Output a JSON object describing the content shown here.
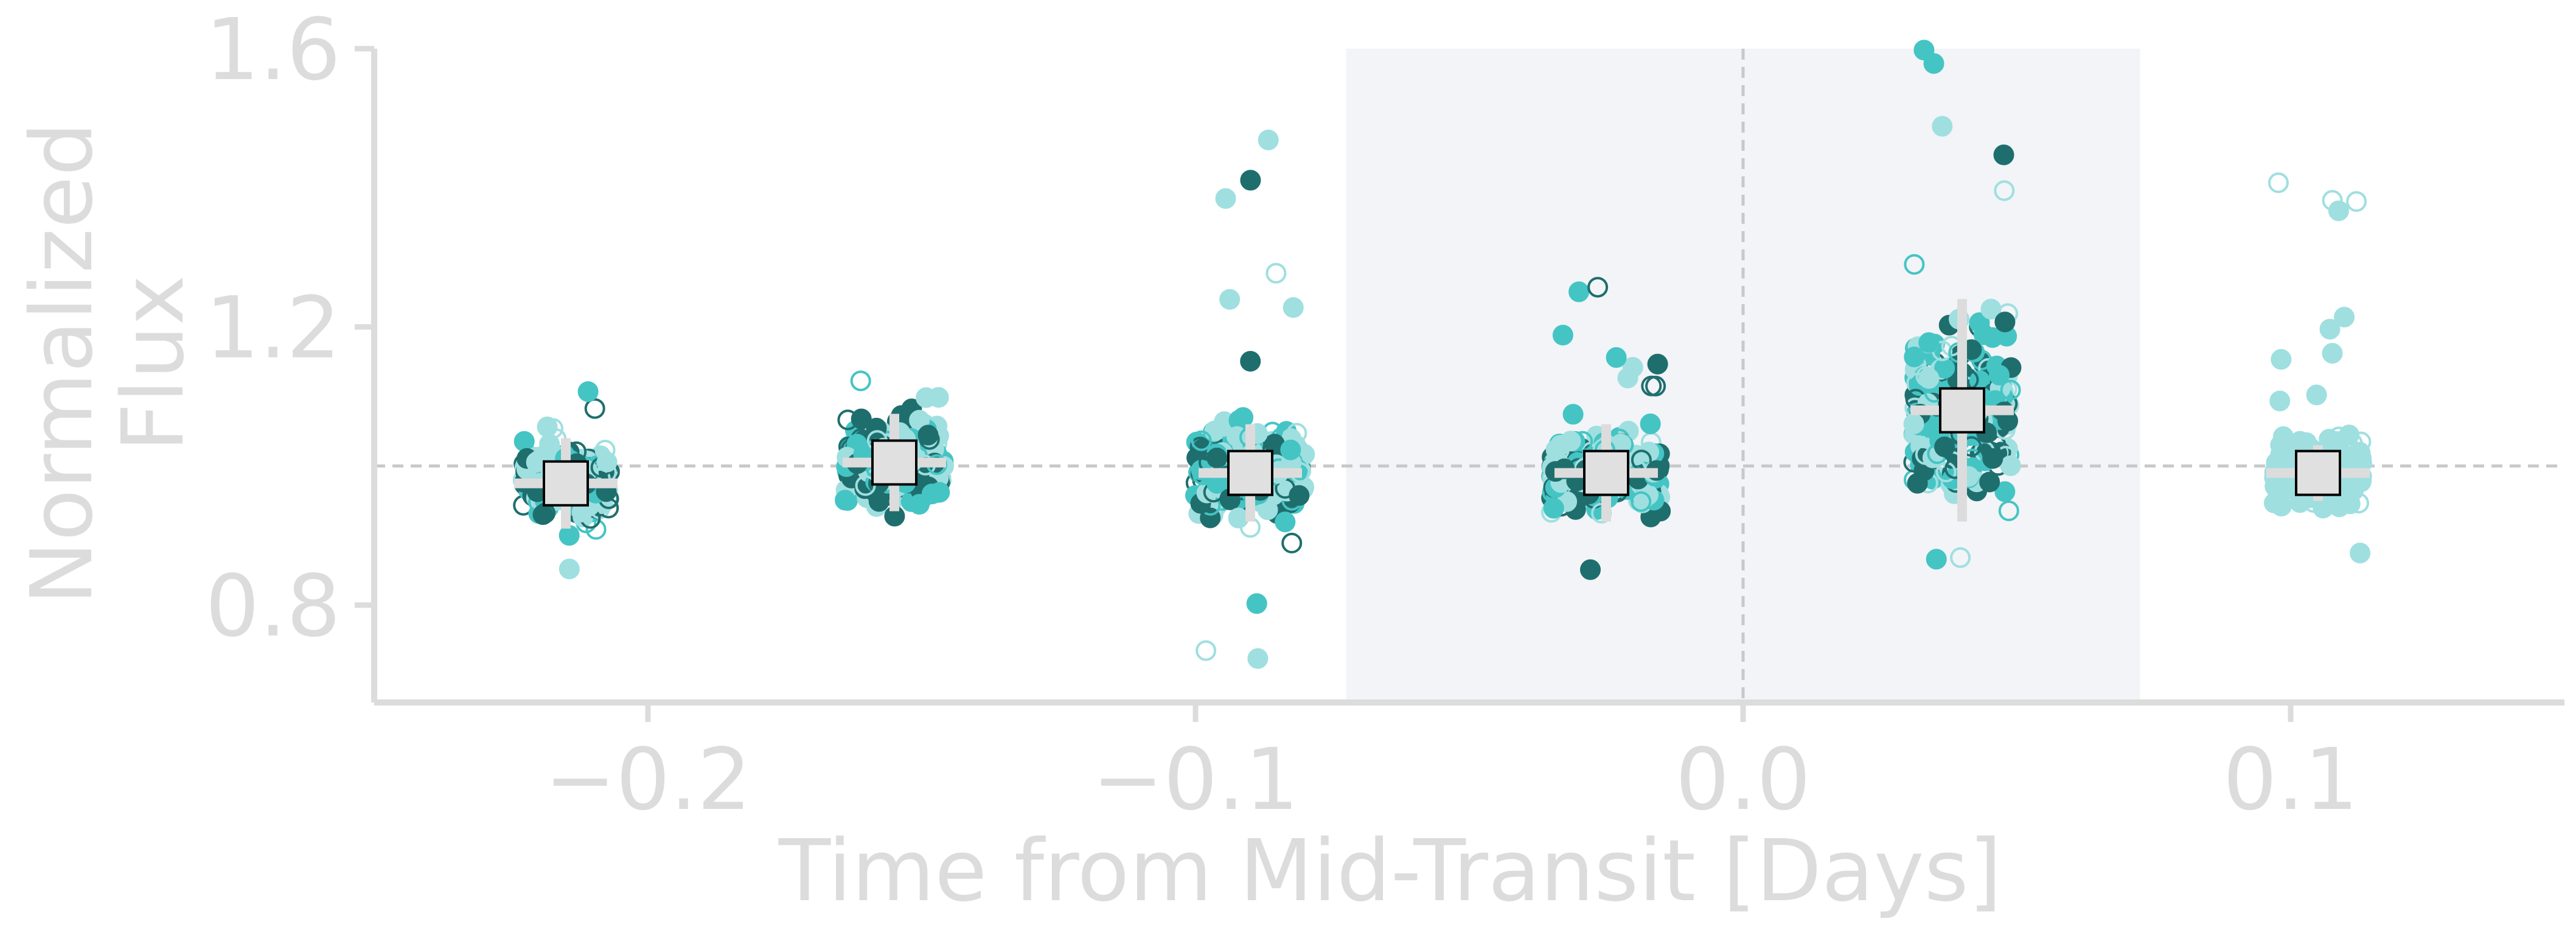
{
  "chart_data": {
    "type": "scatter",
    "title": "",
    "xlabel": "Time from Mid-Transit [Days]",
    "ylabel": [
      "Normalized",
      "Flux"
    ],
    "xlim": [
      -0.25,
      0.15
    ],
    "ylim": [
      0.66,
      1.6
    ],
    "x_ticks": [
      -0.2,
      -0.1,
      0.0,
      0.1
    ],
    "x_tick_labels": [
      "−0.2",
      "−0.1",
      "0.0",
      "0.1"
    ],
    "y_ticks": [
      0.8,
      1.2,
      1.6
    ],
    "y_tick_labels": [
      "0.8",
      "1.2",
      "1.6"
    ],
    "reference_line_y": 1.0,
    "reference_line_x": 0.0,
    "shaded_interval_x": [
      -0.0725,
      0.0725
    ],
    "grid": false,
    "colors": {
      "dark_teal": "#1f6e6e",
      "mid_teal": "#45c4c4",
      "light_teal": "#9fdfe0",
      "axis": "#dcdcdc",
      "reference_line": "#c8c8c8",
      "shade": "#f2f4f7",
      "summary_marker_fill": "#e0e0e0",
      "summary_marker_edge": "#000000",
      "summary_errorbar": "#dcdcdc"
    },
    "groups": [
      {
        "x": -0.215,
        "y": 0.975,
        "yerr": 0.065,
        "spread_x": 0.008,
        "spread_y": 0.06,
        "y_min": 0.82,
        "y_max": 1.18,
        "dominant_colors": [
          "dark_teal",
          "mid_teal",
          "light_teal"
        ]
      },
      {
        "x": -0.155,
        "y": 1.005,
        "yerr": 0.07,
        "spread_x": 0.009,
        "spread_y": 0.07,
        "y_min": 0.82,
        "y_max": 1.21,
        "dominant_colors": [
          "mid_teal",
          "light_teal",
          "dark_teal"
        ]
      },
      {
        "x": -0.09,
        "y": 0.99,
        "yerr": 0.07,
        "spread_x": 0.01,
        "spread_y": 0.07,
        "y_min": 0.67,
        "y_max": 1.53,
        "dominant_colors": [
          "light_teal",
          "mid_teal",
          "dark_teal"
        ]
      },
      {
        "x": -0.025,
        "y": 0.99,
        "yerr": 0.07,
        "spread_x": 0.01,
        "spread_y": 0.065,
        "y_min": 0.78,
        "y_max": 1.27,
        "dominant_colors": [
          "light_teal",
          "dark_teal",
          "mid_teal"
        ]
      },
      {
        "x": 0.04,
        "y": 1.08,
        "yerr": 0.16,
        "spread_x": 0.009,
        "spread_y": 0.14,
        "y_min": 0.81,
        "y_max": 1.6,
        "dominant_colors": [
          "light_teal",
          "mid_teal",
          "dark_teal"
        ]
      },
      {
        "x": 0.105,
        "y": 0.99,
        "yerr": 0.04,
        "spread_x": 0.008,
        "spread_y": 0.055,
        "y_min": 0.82,
        "y_max": 1.49,
        "dominant_colors": [
          "light_teal"
        ]
      }
    ]
  }
}
